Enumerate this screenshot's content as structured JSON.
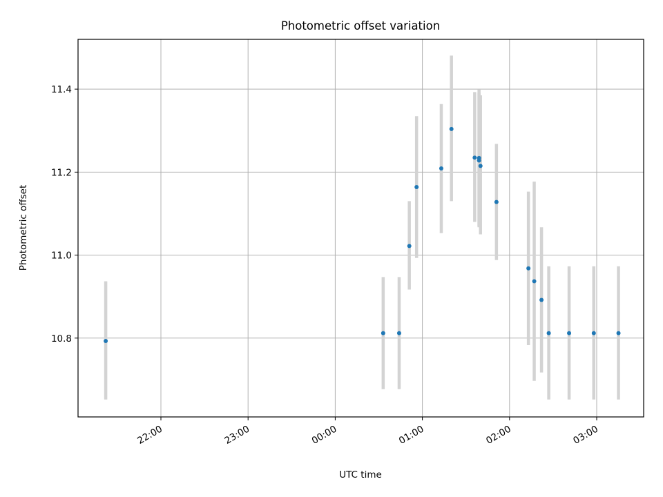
{
  "chart_data": {
    "type": "scatter",
    "title": "Photometric offset variation",
    "xlabel": "UTC time",
    "ylabel": "Photometric offset",
    "grid": true,
    "x_tick_labels": [
      "22:00",
      "23:00",
      "00:00",
      "01:00",
      "02:00",
      "03:00"
    ],
    "y_ticks": [
      10.8,
      11.0,
      11.2,
      11.4
    ],
    "y_tick_labels": [
      "10.8",
      "11.0",
      "11.2",
      "11.4"
    ],
    "ylim": [
      10.61,
      11.52
    ],
    "marker_color": "#1f77b4",
    "errorbar_color": "#d3d3d3",
    "points": [
      {
        "time": "21:22",
        "y": 10.793,
        "ylow": 10.652,
        "yhigh": 10.937
      },
      {
        "time": "00:33",
        "y": 10.812,
        "ylow": 10.677,
        "yhigh": 10.947
      },
      {
        "time": "00:44",
        "y": 10.812,
        "ylow": 10.677,
        "yhigh": 10.947
      },
      {
        "time": "00:51",
        "y": 11.022,
        "ylow": 10.917,
        "yhigh": 11.13
      },
      {
        "time": "00:56",
        "y": 11.164,
        "ylow": 10.993,
        "yhigh": 11.335
      },
      {
        "time": "01:13",
        "y": 11.209,
        "ylow": 11.053,
        "yhigh": 11.364
      },
      {
        "time": "01:20",
        "y": 11.304,
        "ylow": 11.13,
        "yhigh": 11.481
      },
      {
        "time": "01:36",
        "y": 11.235,
        "ylow": 11.08,
        "yhigh": 11.393
      },
      {
        "time": "01:39",
        "y": 11.234,
        "ylow": 11.07,
        "yhigh": 11.399
      },
      {
        "time": "01:39",
        "y": 11.228,
        "ylow": 11.067,
        "yhigh": 11.391
      },
      {
        "time": "01:40",
        "y": 11.215,
        "ylow": 11.05,
        "yhigh": 11.385
      },
      {
        "time": "01:51",
        "y": 11.128,
        "ylow": 10.988,
        "yhigh": 11.268
      },
      {
        "time": "02:13",
        "y": 10.968,
        "ylow": 10.783,
        "yhigh": 11.153
      },
      {
        "time": "02:17",
        "y": 10.937,
        "ylow": 10.697,
        "yhigh": 11.177
      },
      {
        "time": "02:22",
        "y": 10.892,
        "ylow": 10.717,
        "yhigh": 11.067
      },
      {
        "time": "02:27",
        "y": 10.812,
        "ylow": 10.652,
        "yhigh": 10.973
      },
      {
        "time": "02:41",
        "y": 10.812,
        "ylow": 10.652,
        "yhigh": 10.973
      },
      {
        "time": "02:58",
        "y": 10.812,
        "ylow": 10.652,
        "yhigh": 10.973
      },
      {
        "time": "03:15",
        "y": 10.812,
        "ylow": 10.652,
        "yhigh": 10.973
      }
    ]
  }
}
